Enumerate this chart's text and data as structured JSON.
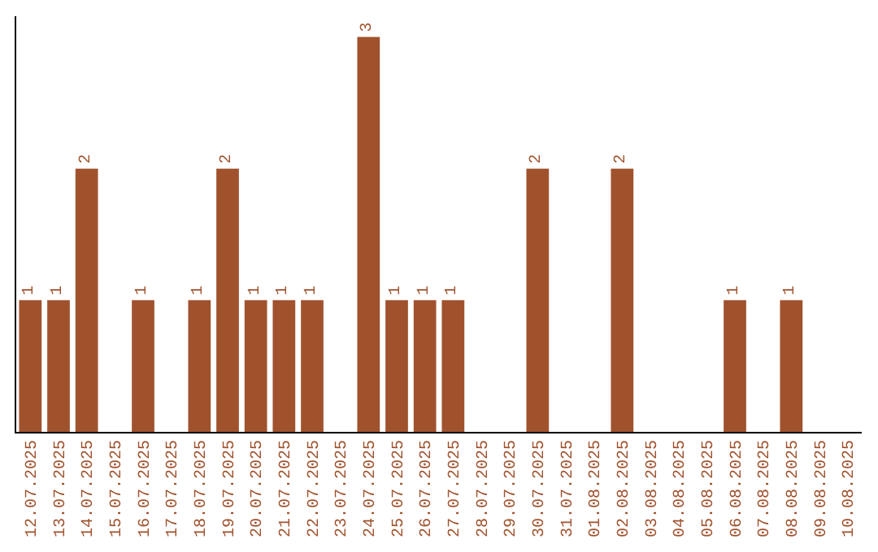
{
  "chart_data": {
    "type": "bar",
    "categories": [
      "12.07.2025",
      "13.07.2025",
      "14.07.2025",
      "15.07.2025",
      "16.07.2025",
      "17.07.2025",
      "18.07.2025",
      "19.07.2025",
      "20.07.2025",
      "21.07.2025",
      "22.07.2025",
      "23.07.2025",
      "24.07.2025",
      "25.07.2025",
      "26.07.2025",
      "27.07.2025",
      "28.07.2025",
      "29.07.2025",
      "30.07.2025",
      "31.07.2025",
      "01.08.2025",
      "02.08.2025",
      "03.08.2025",
      "04.08.2025",
      "05.08.2025",
      "06.08.2025",
      "07.08.2025",
      "08.08.2025",
      "09.08.2025",
      "10.08.2025"
    ],
    "values": [
      1,
      1,
      2,
      0,
      1,
      0,
      1,
      2,
      1,
      1,
      1,
      0,
      3,
      1,
      1,
      1,
      0,
      0,
      2,
      0,
      0,
      2,
      0,
      0,
      0,
      1,
      0,
      1,
      0,
      0
    ],
    "value_labels": [
      "1",
      "1",
      "2",
      null,
      "1",
      null,
      "1",
      "2",
      "1",
      "1",
      "1",
      null,
      "3",
      "1",
      "1",
      "1",
      null,
      null,
      "2",
      null,
      null,
      "2",
      null,
      null,
      null,
      "1",
      null,
      "1",
      null,
      null
    ],
    "color": "#a0522d",
    "tick_labels": "x",
    "grid": false,
    "legend": false
  }
}
